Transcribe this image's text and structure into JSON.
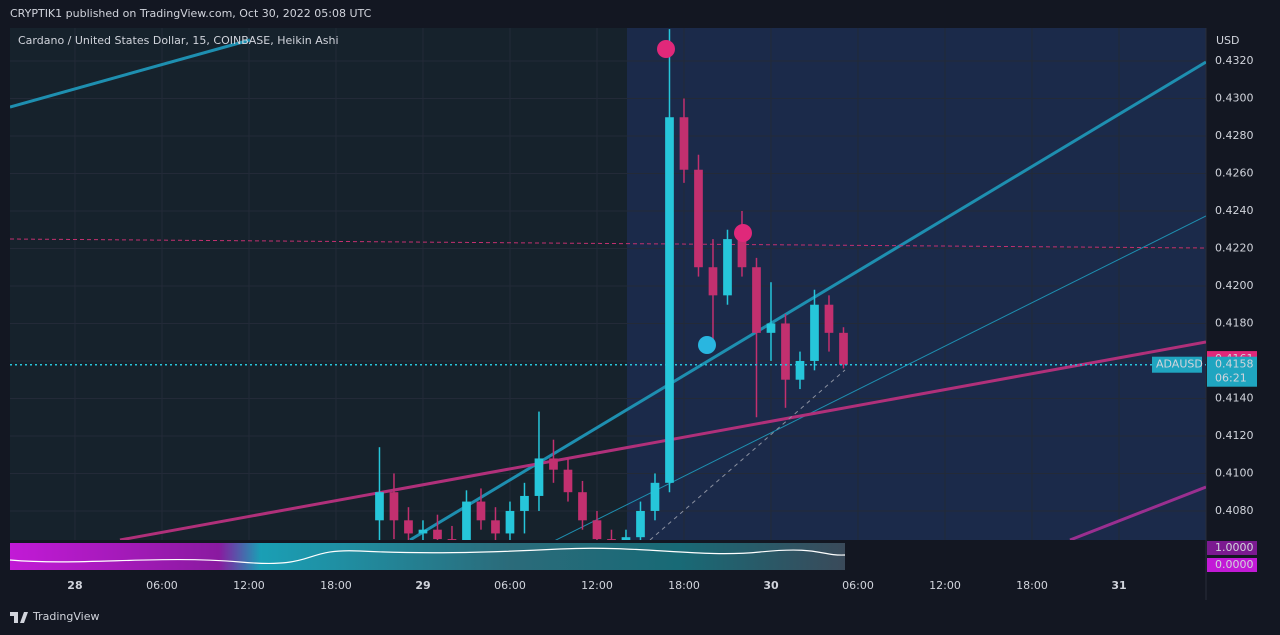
{
  "header": {
    "published": "CRYPTIK1 published on TradingView.com, Oct 30, 2022 05:08 UTC",
    "footer": "TradingView"
  },
  "chart_data": {
    "type": "candlestick",
    "title": "Cardano / United States Dollar, 15, COINBASE, Heikin Ashi",
    "y_axis_label": "USD",
    "x": [
      21,
      22,
      23,
      24,
      25,
      26,
      27,
      28,
      29,
      30,
      31,
      32,
      33,
      34,
      35,
      36,
      37,
      38,
      39,
      40,
      41,
      42,
      43,
      44,
      45,
      46,
      47,
      48,
      49,
      50,
      51,
      52,
      53
    ],
    "open": [
      0.4075,
      0.409,
      0.4075,
      0.4068,
      0.407,
      0.4065,
      0.4062,
      0.4085,
      0.4075,
      0.4068,
      0.408,
      0.4088,
      0.4108,
      0.4102,
      0.409,
      0.4075,
      0.4065,
      0.406,
      0.4066,
      0.408,
      0.4095,
      0.429,
      0.4262,
      0.421,
      0.4195,
      0.4225,
      0.421,
      0.4175,
      0.418,
      0.415,
      0.416,
      0.419,
      0.4175
    ],
    "high": [
      0.4114,
      0.41,
      0.4082,
      0.4075,
      0.4078,
      0.4072,
      0.4091,
      0.4092,
      0.4082,
      0.4085,
      0.4095,
      0.4133,
      0.4118,
      0.4108,
      0.4096,
      0.408,
      0.407,
      0.407,
      0.4085,
      0.41,
      0.4337,
      0.43,
      0.427,
      0.4225,
      0.423,
      0.424,
      0.4215,
      0.4202,
      0.4185,
      0.4165,
      0.4198,
      0.4195,
      0.4178
    ],
    "low": [
      0.406,
      0.4065,
      0.406,
      0.4058,
      0.4058,
      0.4055,
      0.4058,
      0.407,
      0.4062,
      0.406,
      0.4068,
      0.408,
      0.4095,
      0.4085,
      0.407,
      0.4058,
      0.4055,
      0.4055,
      0.4062,
      0.4075,
      0.409,
      0.4255,
      0.4205,
      0.417,
      0.419,
      0.4205,
      0.413,
      0.416,
      0.4135,
      0.4145,
      0.4155,
      0.4165,
      0.4156
    ],
    "close": [
      0.409,
      0.4075,
      0.4068,
      0.407,
      0.4065,
      0.4062,
      0.4085,
      0.4075,
      0.4068,
      0.408,
      0.4088,
      0.4108,
      0.4102,
      0.409,
      0.4075,
      0.4065,
      0.406,
      0.4066,
      0.408,
      0.4095,
      0.429,
      0.4262,
      0.421,
      0.4195,
      0.4225,
      0.421,
      0.4175,
      0.418,
      0.415,
      0.416,
      0.419,
      0.4175,
      0.4158
    ],
    "up_color": "#26c6da",
    "down_color": "#c2306f",
    "xlim": [
      -4.48,
      78
    ],
    "xticks": [
      {
        "value": 0,
        "label": "28"
      },
      {
        "value": 6,
        "label": "06:00"
      },
      {
        "value": 12,
        "label": "12:00"
      },
      {
        "value": 18,
        "label": "18:00"
      },
      {
        "value": 24,
        "label": "29"
      },
      {
        "value": 30,
        "label": "06:00"
      },
      {
        "value": 36,
        "label": "12:00"
      },
      {
        "value": 42,
        "label": "18:00"
      },
      {
        "value": 48,
        "label": "30"
      },
      {
        "value": 54,
        "label": "06:00"
      },
      {
        "value": 60,
        "label": "12:00"
      },
      {
        "value": 66,
        "label": "18:00"
      },
      {
        "value": 72,
        "label": "31"
      }
    ],
    "ylim": [
      0.40645,
      0.43376
    ],
    "yticks": [
      {
        "value": 0.408,
        "label": "0.4080"
      },
      {
        "value": 0.41,
        "label": "0.4100"
      },
      {
        "value": 0.412,
        "label": "0.4120"
      },
      {
        "value": 0.414,
        "label": "0.4140"
      },
      {
        "value": 0.416,
        "label": "0.4160"
      },
      {
        "value": 0.418,
        "label": "0.4180"
      },
      {
        "value": 0.42,
        "label": "0.4200"
      },
      {
        "value": 0.422,
        "label": "0.4220"
      },
      {
        "value": 0.424,
        "label": "0.4240"
      },
      {
        "value": 0.426,
        "label": "0.4260"
      },
      {
        "value": 0.428,
        "label": "0.4280"
      },
      {
        "value": 0.43,
        "label": "0.4300"
      },
      {
        "value": 0.432,
        "label": "0.4320"
      }
    ],
    "grid": true,
    "symbol": "ADAUSD",
    "last_price": {
      "value": 0.4158,
      "label": "0.4158"
    },
    "countdown": "06:21",
    "marker_price": {
      "value": 0.4161,
      "label": "0.4161"
    },
    "indicator": {
      "ylim": [
        -0.294,
        1.294
      ],
      "yticks": [
        {
          "value": 1,
          "label": "1.0000"
        },
        {
          "value": 0,
          "label": "0.0000"
        }
      ]
    }
  }
}
